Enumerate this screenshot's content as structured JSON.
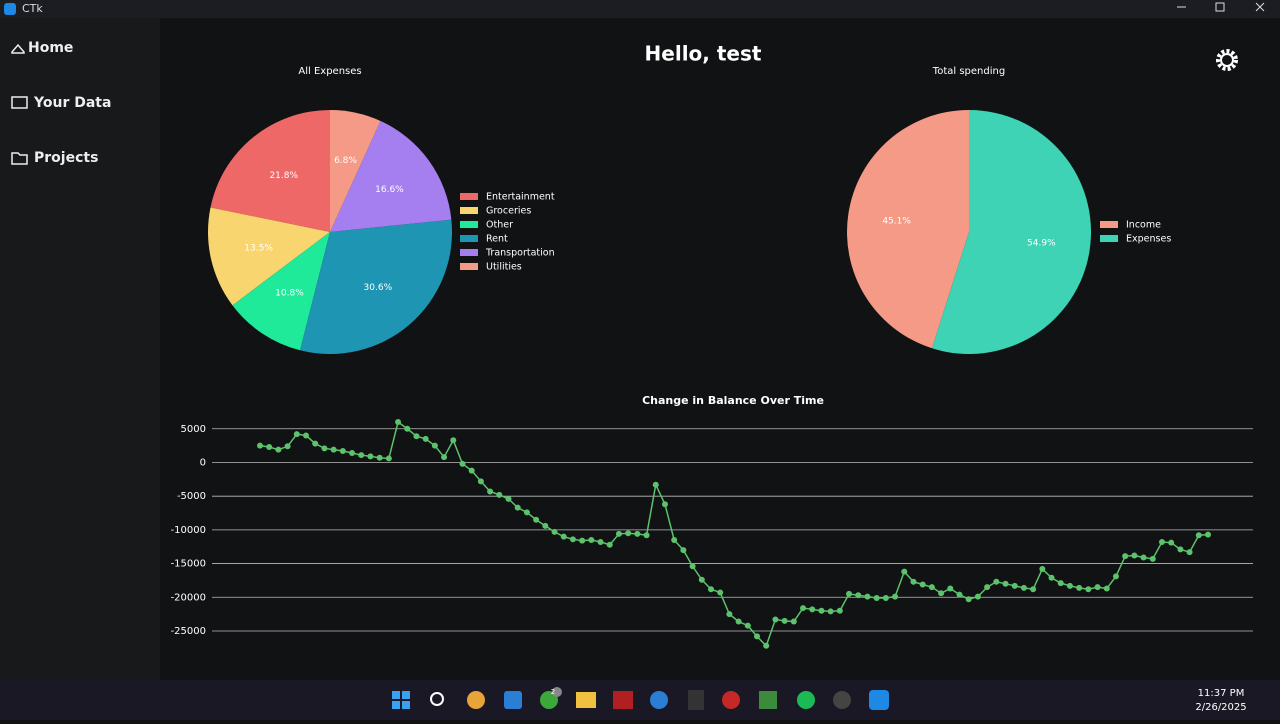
{
  "window": {
    "title": "CTk"
  },
  "sidebar": {
    "items": [
      "Home",
      "Your Data",
      "Projects"
    ]
  },
  "header": {
    "title": "Hello, test"
  },
  "taskbar": {
    "time": "11:37 PM",
    "date": "2/26/2025",
    "badge": "2"
  },
  "chart_data": [
    {
      "type": "pie",
      "title": "All Expenses",
      "categories": [
        "Entertainment",
        "Groceries",
        "Other",
        "Rent",
        "Transportation",
        "Utilities"
      ],
      "values": [
        21.8,
        13.5,
        10.8,
        30.6,
        16.6,
        6.8
      ],
      "value_labels": [
        "21.8%",
        "13.5%",
        "10.8%",
        "30.6%",
        "16.6%",
        "6.8%"
      ],
      "colors": [
        "#ef6868",
        "#f8d56e",
        "#1eea9a",
        "#1f95b4",
        "#a57ff0",
        "#f59a86"
      ]
    },
    {
      "type": "pie",
      "title": "Total spending",
      "categories": [
        "Income",
        "Expenses"
      ],
      "values": [
        45.1,
        54.9
      ],
      "value_labels": [
        "45.1%",
        "54.9%"
      ],
      "colors": [
        "#f59a86",
        "#3dd3b4"
      ]
    },
    {
      "type": "line",
      "title": "Change in Balance Over Time",
      "color": "#5cc26c",
      "values": [
        2500,
        2300,
        1900,
        2400,
        4200,
        4000,
        2800,
        2100,
        1900,
        1700,
        1400,
        1100,
        900,
        700,
        600,
        6000,
        5000,
        3900,
        3500,
        2500,
        800,
        3300,
        -200,
        -1200,
        -2800,
        -4300,
        -4800,
        -5400,
        -6700,
        -7400,
        -8500,
        -9400,
        -10300,
        -11000,
        -11400,
        -11600,
        -11500,
        -11800,
        -12200,
        -10600,
        -10500,
        -10600,
        -10800,
        -3300,
        -6200,
        -11500,
        -13000,
        -15400,
        -17400,
        -18800,
        -19300,
        -22500,
        -23600,
        -24200,
        -25800,
        -27200,
        -23300,
        -23500,
        -23600,
        -21600,
        -21800,
        -22000,
        -22100,
        -22000,
        -19500,
        -19700,
        -19900,
        -20100,
        -20100,
        -19900,
        -16200,
        -17700,
        -18100,
        -18500,
        -19400,
        -18700,
        -19600,
        -20300,
        -19900,
        -18500,
        -17700,
        -18000,
        -18300,
        -18600,
        -18800,
        -15800,
        -17100,
        -17900,
        -18300,
        -18600,
        -18800,
        -18500,
        -18700,
        -16900,
        -13900,
        -13800,
        -14100,
        -14300,
        -11800,
        -11900,
        -12900,
        -13300,
        -10800,
        -10700
      ],
      "ylim": [
        -28000,
        7000
      ],
      "yticks": [
        5000,
        0,
        -5000,
        -10000,
        -15000,
        -20000,
        -25000
      ],
      "grid": true
    }
  ]
}
